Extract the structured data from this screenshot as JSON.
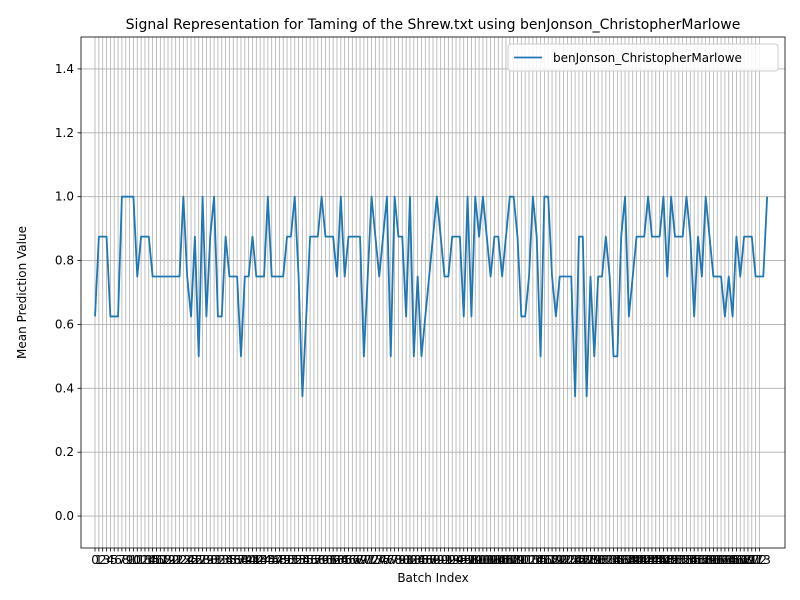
{
  "chart_data": {
    "type": "line",
    "title": "Signal Representation for Taming of the Shrew.txt using benJonson_ChristopherMarlowe",
    "xlabel": "Batch Index",
    "ylabel": "Mean Prediction Value",
    "xlim": [
      -3.65,
      179.65
    ],
    "ylim": [
      -0.1,
      1.5
    ],
    "yticks": [
      0.0,
      0.2,
      0.4,
      0.6,
      0.8,
      1.0,
      1.2,
      1.4
    ],
    "xtick_count": 174,
    "grid": true,
    "legend_location": "upper right",
    "colors": {
      "series": "#1f77b4",
      "grid": "#b0b0b0"
    },
    "series": [
      {
        "name": "benJonson_ChristopherMarlowe",
        "values": [
          0.625,
          0.875,
          0.875,
          0.875,
          0.625,
          0.625,
          0.625,
          1.0,
          1.0,
          1.0,
          1.0,
          0.75,
          0.875,
          0.875,
          0.875,
          0.75,
          0.75,
          0.75,
          0.75,
          0.75,
          0.75,
          0.75,
          0.75,
          1.0,
          0.75,
          0.625,
          0.875,
          0.5,
          1.0,
          0.625,
          0.875,
          1.0,
          0.625,
          0.625,
          0.875,
          0.75,
          0.75,
          0.75,
          0.5,
          0.75,
          0.75,
          0.875,
          0.75,
          0.75,
          0.75,
          1.0,
          0.75,
          0.75,
          0.75,
          0.75,
          0.875,
          0.875,
          1.0,
          0.75,
          0.375,
          0.625,
          0.875,
          0.875,
          0.875,
          1.0,
          0.875,
          0.875,
          0.875,
          0.75,
          1.0,
          0.75,
          0.875,
          0.875,
          0.875,
          0.875,
          0.5,
          0.75,
          1.0,
          0.875,
          0.75,
          0.875,
          1.0,
          0.5,
          1.0,
          0.875,
          0.875,
          0.625,
          1.0,
          0.5,
          0.75,
          0.5,
          0.625,
          0.75,
          0.875,
          1.0,
          0.875,
          0.75,
          0.75,
          0.875,
          0.875,
          0.875,
          0.625,
          1.0,
          0.625,
          1.0,
          0.875,
          1.0,
          0.875,
          0.75,
          0.875,
          0.875,
          0.75,
          0.875,
          1.0,
          1.0,
          0.875,
          0.625,
          0.625,
          0.75,
          1.0,
          0.875,
          0.5,
          1.0,
          1.0,
          0.75,
          0.625,
          0.75,
          0.75,
          0.75,
          0.75,
          0.375,
          0.875,
          0.875,
          0.375,
          0.75,
          0.5,
          0.75,
          0.75,
          0.875,
          0.75,
          0.5,
          0.5,
          0.875,
          1.0,
          0.625,
          0.75,
          0.875,
          0.875,
          0.875,
          1.0,
          0.875,
          0.875,
          0.875,
          1.0,
          0.75,
          1.0,
          0.875,
          0.875,
          0.875,
          1.0,
          0.875,
          0.625,
          0.875,
          0.75,
          1.0,
          0.875,
          0.75,
          0.75,
          0.75,
          0.625,
          0.75,
          0.625,
          0.875,
          0.75,
          0.875,
          0.875,
          0.875,
          0.75,
          0.75,
          0.75,
          1.0
        ]
      }
    ]
  }
}
